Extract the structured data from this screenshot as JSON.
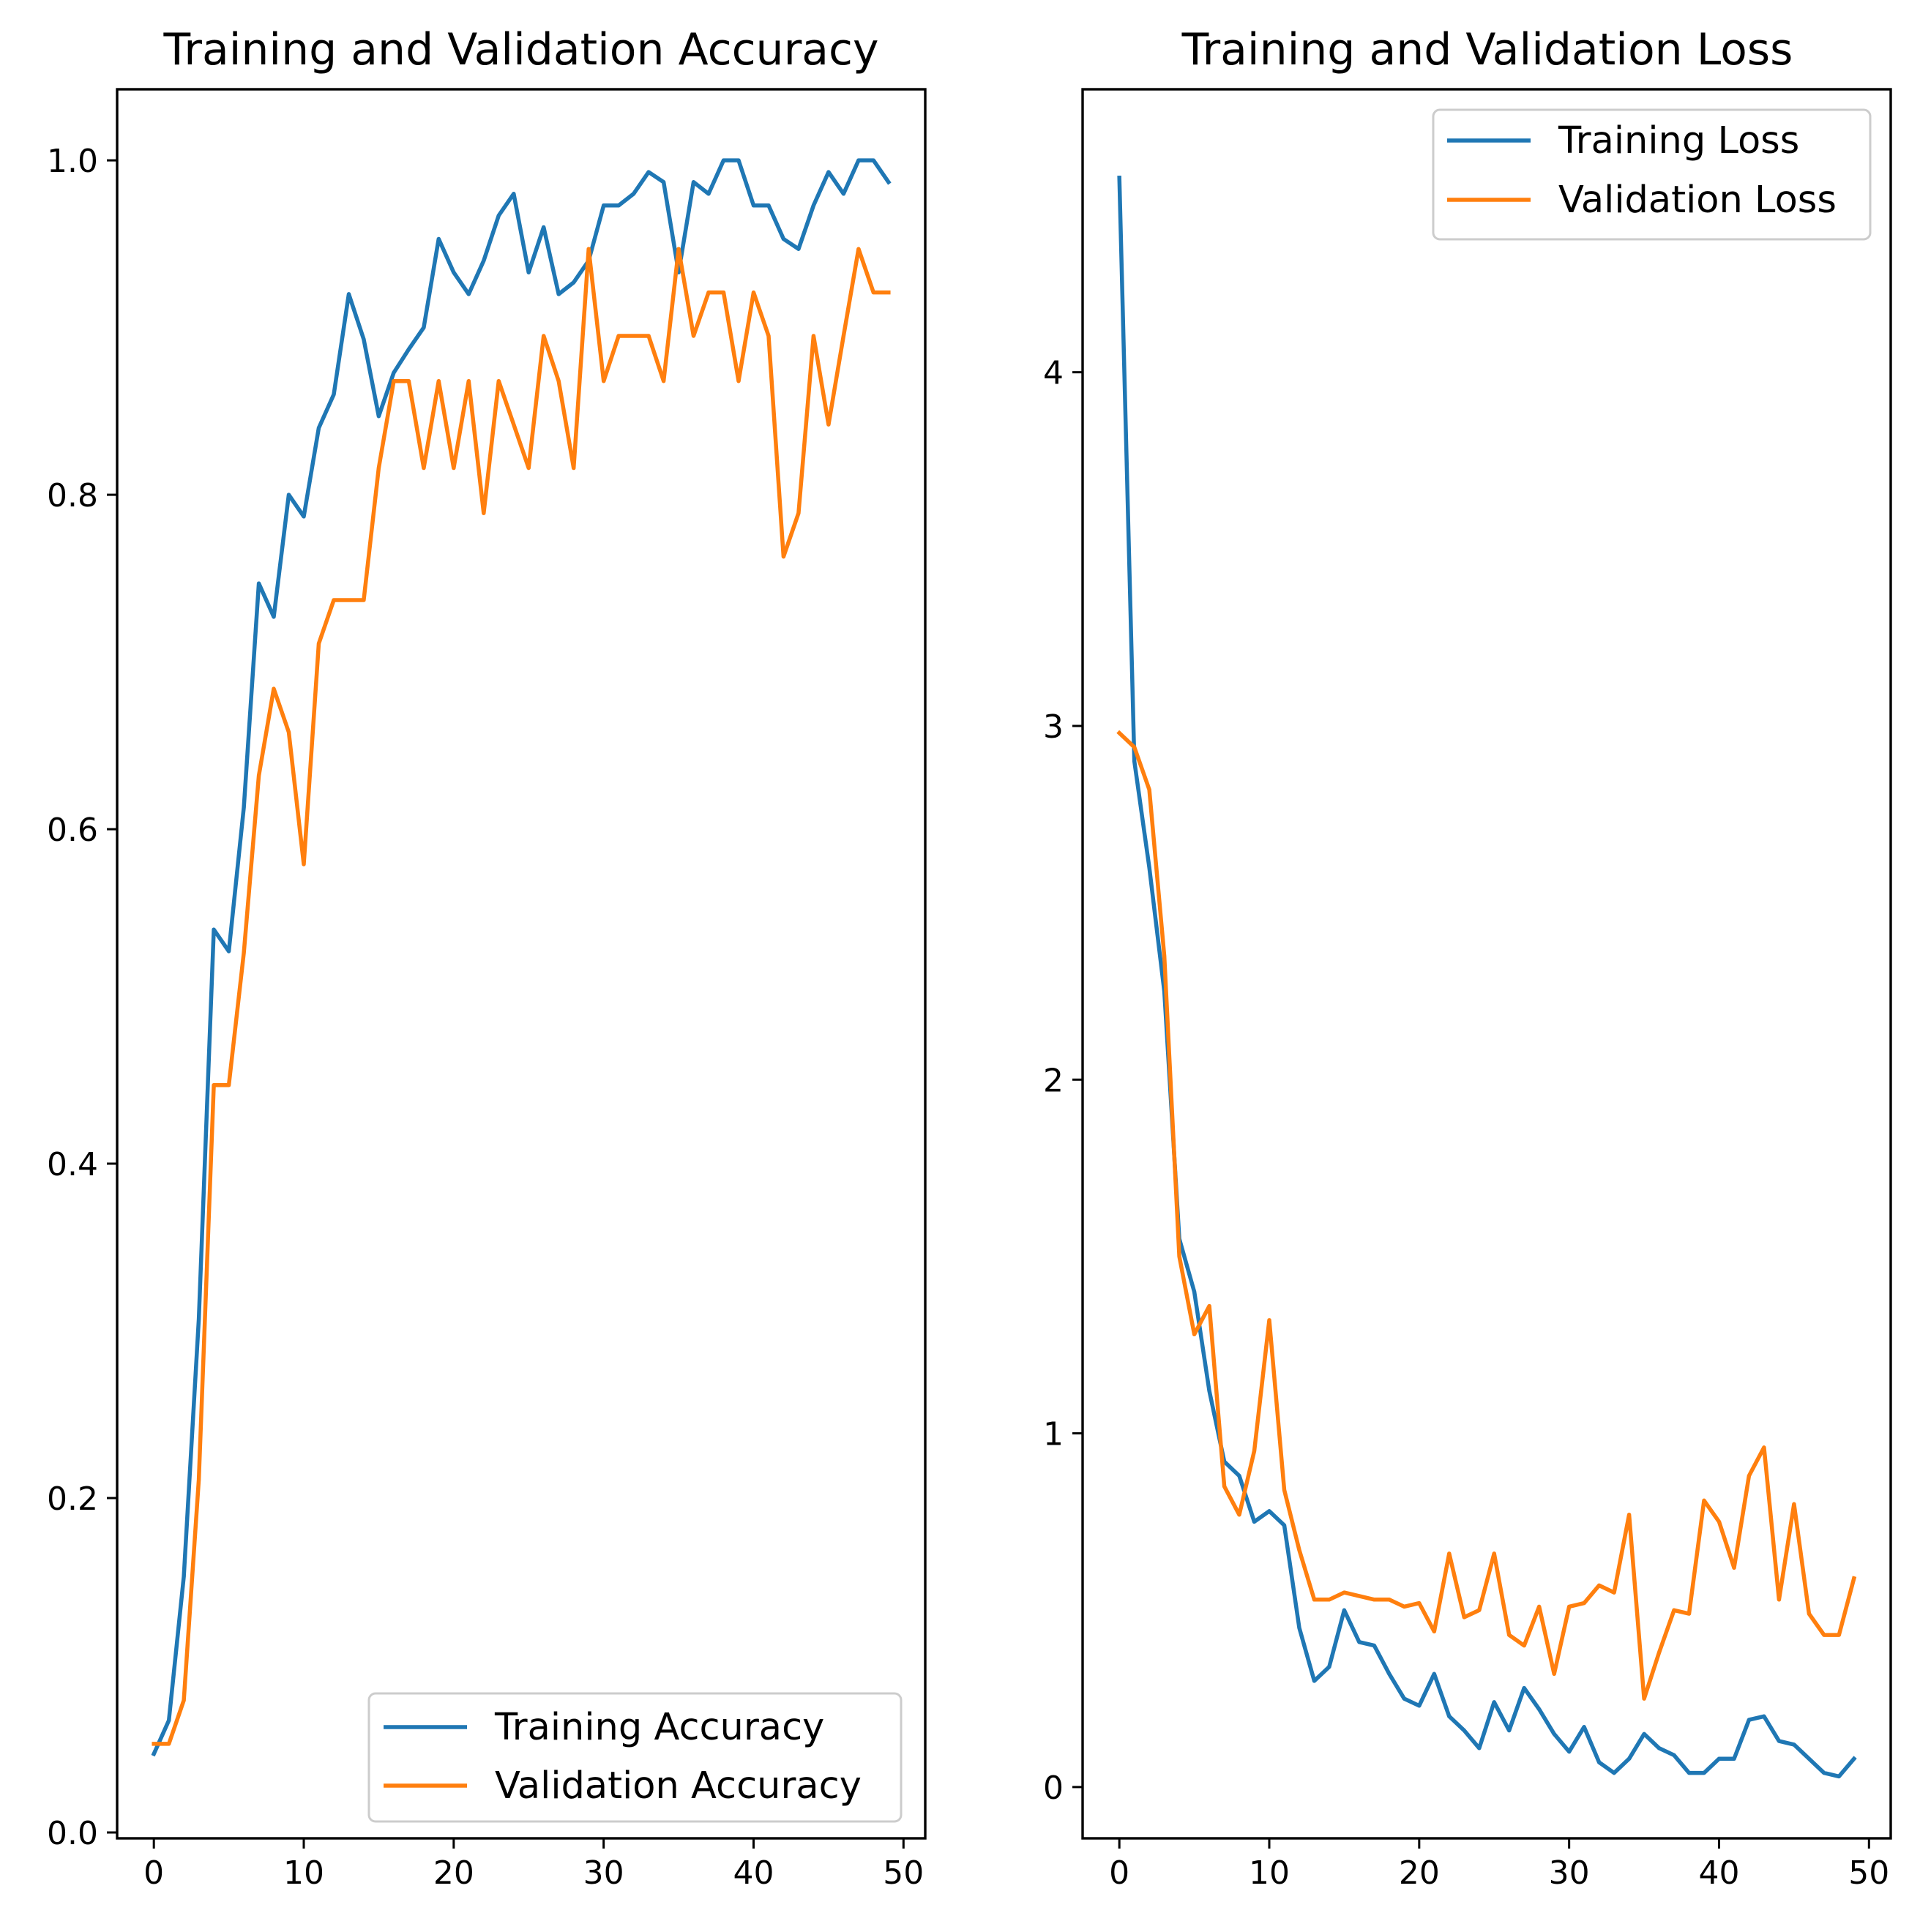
{
  "colors": {
    "training": "#1f77b4",
    "validation": "#ff7f0e"
  },
  "chart_data": [
    {
      "type": "line",
      "title": "Training and Validation Accuracy",
      "xlabel": "",
      "ylabel": "",
      "xlim": [
        -2.45,
        51.45
      ],
      "ylim": [
        -0.0035,
        1.0425
      ],
      "xticks": [
        0,
        10,
        20,
        30,
        40,
        50
      ],
      "xtick_labels": [
        "0",
        "10",
        "20",
        "30",
        "40",
        "50"
      ],
      "yticks": [
        0.0,
        0.2,
        0.4,
        0.6,
        0.8,
        1.0
      ],
      "ytick_labels": [
        "0.0",
        "0.2",
        "0.4",
        "0.6",
        "0.8",
        "1.0"
      ],
      "grid": false,
      "legend_position": "lower-right",
      "x": [
        0,
        1,
        2,
        3,
        4,
        5,
        6,
        7,
        8,
        9,
        10,
        11,
        12,
        13,
        14,
        15,
        16,
        17,
        18,
        19,
        20,
        21,
        22,
        23,
        24,
        25,
        26,
        27,
        28,
        29,
        30,
        31,
        32,
        33,
        34,
        35,
        36,
        37,
        38,
        39,
        40,
        41,
        42,
        43,
        44,
        45,
        46,
        47,
        48,
        49
      ],
      "series": [
        {
          "name": "Training Accuracy",
          "color_key": "training",
          "values": [
            0.047,
            0.067,
            0.153,
            0.307,
            0.54,
            0.527,
            0.613,
            0.747,
            0.727,
            0.8,
            0.787,
            0.84,
            0.86,
            0.92,
            0.893,
            0.847,
            0.873,
            0.887,
            0.9,
            0.953,
            0.933,
            0.92,
            0.94,
            0.967,
            0.98,
            0.933,
            0.96,
            0.92,
            0.927,
            0.94,
            0.973,
            0.973,
            0.98,
            0.993,
            0.987,
            0.933,
            0.987,
            0.98,
            1.0,
            1.0,
            0.973,
            0.973,
            0.953,
            0.947,
            0.973,
            0.993,
            0.98,
            1.0,
            1.0,
            0.987
          ]
        },
        {
          "name": "Validation Accuracy",
          "color_key": "validation",
          "values": [
            0.053,
            0.053,
            0.079,
            0.211,
            0.447,
            0.447,
            0.526,
            0.632,
            0.684,
            0.658,
            0.579,
            0.711,
            0.737,
            0.737,
            0.737,
            0.816,
            0.868,
            0.868,
            0.816,
            0.868,
            0.816,
            0.868,
            0.789,
            0.868,
            0.842,
            0.816,
            0.895,
            0.868,
            0.816,
            0.947,
            0.868,
            0.895,
            0.895,
            0.895,
            0.868,
            0.947,
            0.895,
            0.921,
            0.921,
            0.868,
            0.921,
            0.895,
            0.763,
            0.789,
            0.895,
            0.842,
            0.895,
            0.947,
            0.921,
            0.921
          ]
        }
      ]
    },
    {
      "type": "line",
      "title": "Training and Validation Loss",
      "xlabel": "",
      "ylabel": "",
      "xlim": [
        -2.45,
        51.45
      ],
      "ylim": [
        -0.145,
        4.8
      ],
      "xticks": [
        0,
        10,
        20,
        30,
        40,
        50
      ],
      "xtick_labels": [
        "0",
        "10",
        "20",
        "30",
        "40",
        "50"
      ],
      "yticks": [
        0,
        1,
        2,
        3,
        4
      ],
      "ytick_labels": [
        "0",
        "1",
        "2",
        "3",
        "4"
      ],
      "grid": false,
      "legend_position": "upper-right",
      "x": [
        0,
        1,
        2,
        3,
        4,
        5,
        6,
        7,
        8,
        9,
        10,
        11,
        12,
        13,
        14,
        15,
        16,
        17,
        18,
        19,
        20,
        21,
        22,
        23,
        24,
        25,
        26,
        27,
        28,
        29,
        30,
        31,
        32,
        33,
        34,
        35,
        36,
        37,
        38,
        39,
        40,
        41,
        42,
        43,
        44,
        45,
        46,
        47,
        48,
        49
      ],
      "series": [
        {
          "name": "Training Loss",
          "color_key": "training",
          "values": [
            4.55,
            2.9,
            2.6,
            2.25,
            1.55,
            1.4,
            1.12,
            0.92,
            0.88,
            0.75,
            0.78,
            0.74,
            0.45,
            0.3,
            0.34,
            0.5,
            0.41,
            0.4,
            0.32,
            0.25,
            0.23,
            0.32,
            0.2,
            0.16,
            0.11,
            0.24,
            0.16,
            0.28,
            0.22,
            0.15,
            0.1,
            0.17,
            0.07,
            0.04,
            0.08,
            0.15,
            0.11,
            0.09,
            0.04,
            0.04,
            0.08,
            0.08,
            0.19,
            0.2,
            0.13,
            0.12,
            0.08,
            0.04,
            0.03,
            0.08
          ]
        },
        {
          "name": "Validation Loss",
          "color_key": "validation",
          "values": [
            2.98,
            2.94,
            2.82,
            2.35,
            1.5,
            1.28,
            1.36,
            0.85,
            0.77,
            0.95,
            1.32,
            0.84,
            0.67,
            0.53,
            0.53,
            0.55,
            0.54,
            0.53,
            0.53,
            0.51,
            0.52,
            0.44,
            0.66,
            0.48,
            0.5,
            0.66,
            0.43,
            0.4,
            0.51,
            0.32,
            0.51,
            0.52,
            0.57,
            0.55,
            0.77,
            0.25,
            0.38,
            0.5,
            0.49,
            0.81,
            0.75,
            0.62,
            0.88,
            0.96,
            0.53,
            0.8,
            0.49,
            0.43,
            0.43,
            0.59
          ]
        }
      ]
    }
  ]
}
